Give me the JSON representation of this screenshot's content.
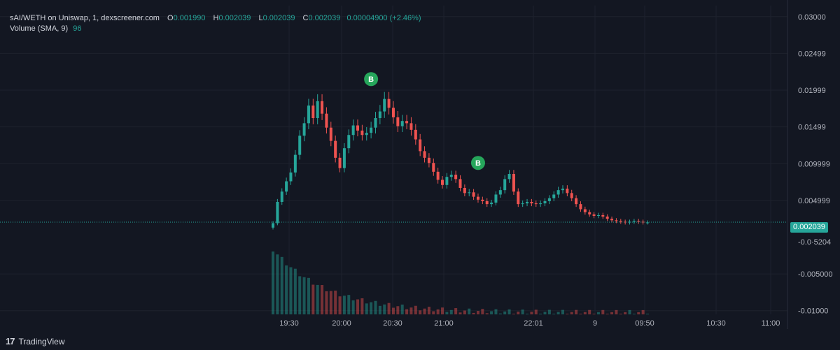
{
  "legend": {
    "symbol": "sAI/WETH on Uniswap, 1, dexscreener.com",
    "open_label": "O",
    "open": "0.001990",
    "high_label": "H",
    "high": "0.002039",
    "low_label": "L",
    "low": "0.002039",
    "close_label": "C",
    "close": "0.002039",
    "change": "0.00004900 (+2.46%)",
    "volume_label": "Volume (SMA, 9)",
    "volume_value": "96"
  },
  "last_price_tag": "0.002039",
  "footer": {
    "brand": "TradingView",
    "logo_glyph": "17"
  },
  "colors": {
    "up": "#26a69a",
    "down": "#ef5350",
    "background": "#131722",
    "grid": "#1f2430",
    "marker": "#26a65b"
  },
  "chart_data": {
    "type": "candlestick",
    "price_axis_labels": [
      "0.03000",
      "0.02499",
      "0.01999",
      "0.01499",
      "0.009999",
      "0.004999",
      "-0.005000",
      "-0.01000"
    ],
    "overlapping_axis_label": "-0.0·5204",
    "time_axis_labels": [
      "19:30",
      "20:00",
      "20:30",
      "21:00",
      "22:01",
      "9",
      "09:50",
      "10:30",
      "11:00"
    ],
    "price_range": [
      -0.0105,
      0.0315
    ],
    "last_price": 0.002039,
    "markers": [
      {
        "label": "B",
        "time_index": 22,
        "price": 0.0215
      },
      {
        "label": "B",
        "time_index": 46,
        "price": 0.0101
      }
    ],
    "price_series": [
      0.0019,
      0.0048,
      0.0062,
      0.0076,
      0.0088,
      0.0112,
      0.0138,
      0.0155,
      0.0179,
      0.0162,
      0.0185,
      0.0168,
      0.0149,
      0.0131,
      0.0108,
      0.0094,
      0.0121,
      0.0139,
      0.0152,
      0.0145,
      0.0139,
      0.0142,
      0.0149,
      0.0162,
      0.0171,
      0.0188,
      0.0176,
      0.0163,
      0.0151,
      0.0158,
      0.0155,
      0.0146,
      0.0133,
      0.0117,
      0.0108,
      0.0101,
      0.0089,
      0.0078,
      0.0071,
      0.0082,
      0.0085,
      0.0079,
      0.0067,
      0.006,
      0.0061,
      0.0055,
      0.0051,
      0.0049,
      0.0045,
      0.0047,
      0.0058,
      0.0064,
      0.0079,
      0.0086,
      0.0062,
      0.0045,
      0.0046,
      0.0048,
      0.0046,
      0.0045,
      0.0046,
      0.0049,
      0.0053,
      0.0058,
      0.0064,
      0.0066,
      0.006,
      0.0053,
      0.0045,
      0.0038,
      0.0034,
      0.0031,
      0.0029,
      0.003,
      0.0028,
      0.0025,
      0.0023,
      0.0022,
      0.0021,
      0.002,
      0.0021,
      0.0022,
      0.0021,
      0.002,
      0.002
    ]
  }
}
